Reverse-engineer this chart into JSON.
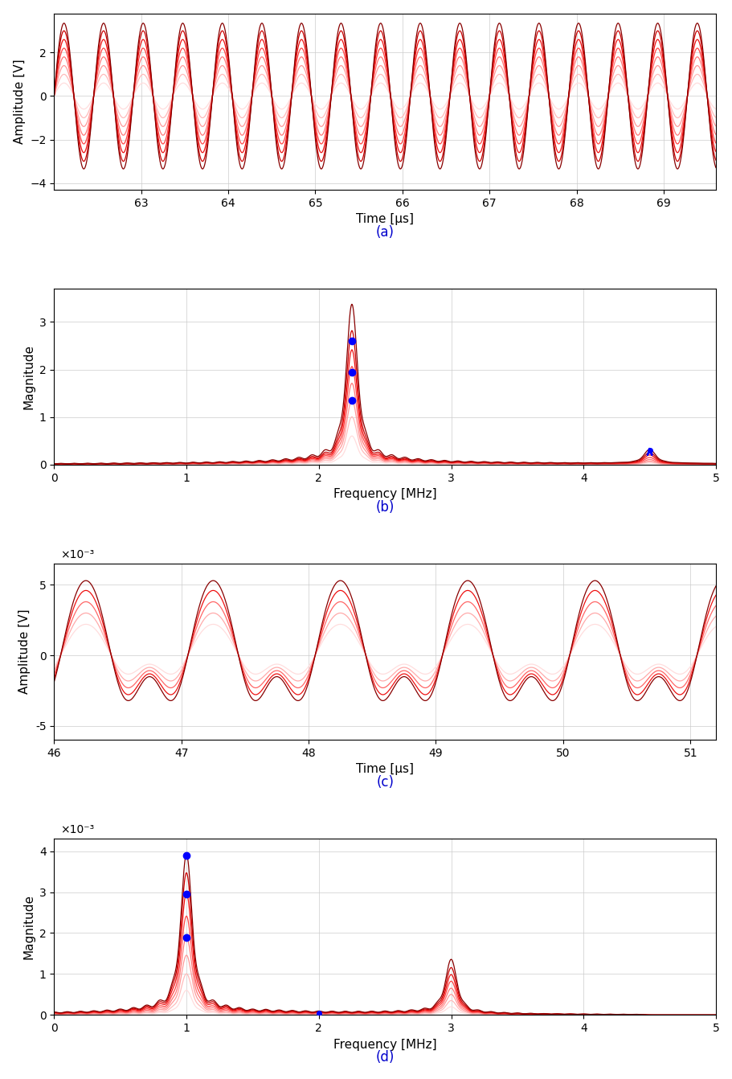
{
  "plot_a": {
    "time_start": 62.0,
    "time_end": 69.6,
    "frequency_MHz": 2.2,
    "n_curves": 8,
    "amplitudes": [
      0.6,
      1.0,
      1.4,
      1.8,
      2.2,
      2.6,
      3.0,
      3.35
    ],
    "colors": [
      "#ffdddd",
      "#ffbbbb",
      "#ff9999",
      "#ff7777",
      "#ff4444",
      "#ee1111",
      "#cc0000",
      "#880000"
    ],
    "ylabel": "Amplitude [V]",
    "xlabel": "Time [μs]",
    "label": "(a)",
    "ylim": [
      -4.3,
      3.8
    ],
    "yticks": [
      -4,
      -2,
      0,
      2
    ],
    "xticks": [
      63,
      64,
      65,
      66,
      67,
      68,
      69
    ]
  },
  "plot_b": {
    "freq_start": 0.0,
    "freq_end": 5.0,
    "main_freq": 2.25,
    "harmonic_freq": 4.5,
    "n_curves": 8,
    "peak_values": [
      0.6,
      1.0,
      1.35,
      1.7,
      2.05,
      2.4,
      2.8,
      3.35
    ],
    "harmonic_peak_values": [
      0.03,
      0.05,
      0.07,
      0.1,
      0.14,
      0.19,
      0.24,
      0.3
    ],
    "blue_dot_mags": [
      1.35,
      1.95,
      2.6
    ],
    "blue_arrow_mag": 0.3,
    "colors": [
      "#ffdddd",
      "#ffbbbb",
      "#ff9999",
      "#ff7777",
      "#ff4444",
      "#ee1111",
      "#cc0000",
      "#880000"
    ],
    "ylabel": "Magnitude",
    "xlabel": "Frequency [MHz]",
    "label": "(b)",
    "ylim": [
      0,
      3.7
    ],
    "yticks": [
      0,
      1,
      2,
      3
    ],
    "xticks": [
      0,
      1,
      2,
      3,
      4,
      5
    ]
  },
  "plot_c": {
    "time_start": 46.0,
    "time_end": 51.2,
    "frequency_MHz": 1.0,
    "n_curves": 5,
    "amplitudes": [
      0.0022,
      0.003,
      0.0038,
      0.0046,
      0.0053
    ],
    "colors": [
      "#ffdddd",
      "#ffaaaa",
      "#ff6666",
      "#ee1111",
      "#880000"
    ],
    "ylabel": "Amplitude [V]",
    "xlabel": "Time [μs]",
    "label": "(c)",
    "ylim": [
      -0.006,
      0.0065
    ],
    "yticks": [
      -0.005,
      0,
      0.005
    ],
    "yticklabels": [
      "-5",
      "0",
      "5"
    ],
    "xticks": [
      46,
      47,
      48,
      49,
      50,
      51
    ],
    "scale_text": "×10⁻³"
  },
  "plot_d": {
    "freq_start": 0.0,
    "freq_end": 5.0,
    "main_freq": 1.0,
    "harmonic_freq": 3.0,
    "n_curves": 8,
    "peak_values": [
      0.0006,
      0.001,
      0.00145,
      0.0019,
      0.0024,
      0.00295,
      0.00345,
      0.0039
    ],
    "harmonic_peak_values": [
      0.0002,
      0.00035,
      0.0005,
      0.00065,
      0.00082,
      0.00098,
      0.00115,
      0.00135
    ],
    "blue_dot_mags": [
      0.0019,
      0.00295,
      0.0039
    ],
    "blue_dot_x": 2.0,
    "colors": [
      "#ffdddd",
      "#ffbbbb",
      "#ff9999",
      "#ff7777",
      "#ff4444",
      "#ee1111",
      "#cc0000",
      "#880000"
    ],
    "ylabel": "Magnitude",
    "xlabel": "Frequency [MHz]",
    "label": "(d)",
    "ylim": [
      0,
      0.0043
    ],
    "yticks": [
      0,
      0.001,
      0.002,
      0.003,
      0.004
    ],
    "yticklabels": [
      "0",
      "1",
      "2",
      "3",
      "4"
    ],
    "xticks": [
      0,
      1,
      2,
      3,
      4,
      5
    ],
    "scale_text": "×10⁻³"
  },
  "background_color": "#ffffff",
  "label_color": "#0000cc",
  "grid_color": "#cccccc"
}
